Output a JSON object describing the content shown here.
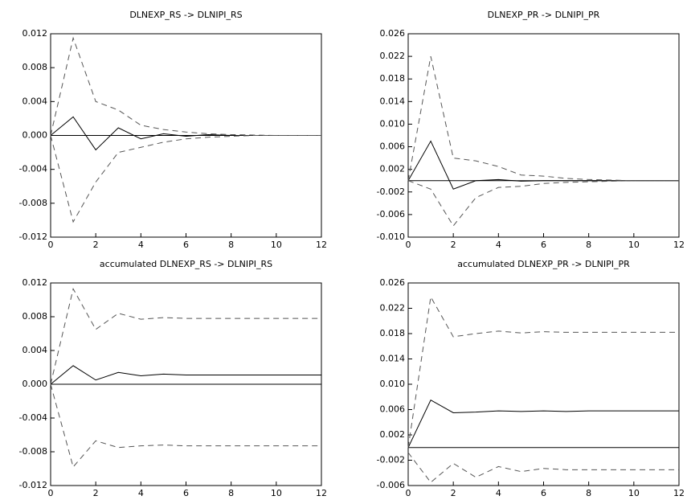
{
  "chart_data": [
    {
      "type": "line",
      "title": "DLNEXP_RS -> DLNIPI_RS",
      "x": [
        0,
        1,
        2,
        3,
        4,
        5,
        6,
        7,
        8,
        9,
        10,
        11,
        12
      ],
      "xlim": [
        0,
        12
      ],
      "xticks": [
        0,
        2,
        4,
        6,
        8,
        10,
        12
      ],
      "ylim": [
        -0.012,
        0.012
      ],
      "yticks": [
        -0.012,
        -0.008,
        -0.004,
        {
          "value": 0,
          "label": "0.000"
        },
        0.004,
        0.008,
        0.012
      ],
      "reference_line": 0,
      "series": [
        {
          "color": "#000000",
          "style": "solid",
          "values": [
            0,
            0.0022,
            -0.0017,
            0.0009,
            -0.0004,
            0.0002,
            -0.0001,
            0.0001,
            0,
            0,
            0,
            0,
            0
          ]
        },
        {
          "color": "#555555",
          "style": "dashed",
          "values": [
            0,
            0.0115,
            0.004,
            0.003,
            0.0012,
            0.0007,
            0.0004,
            0.0002,
            0.0001,
            5e-05,
            0,
            0,
            0
          ]
        },
        {
          "color": "#555555",
          "style": "dashed",
          "values": [
            0,
            -0.0102,
            -0.0055,
            -0.002,
            -0.0014,
            -0.0008,
            -0.0004,
            -0.0002,
            -0.0001,
            0,
            0,
            0,
            0
          ]
        }
      ]
    },
    {
      "type": "line",
      "title": "DLNEXP_PR -> DLNIPI_PR",
      "x": [
        0,
        1,
        2,
        3,
        4,
        5,
        6,
        7,
        8,
        9,
        10,
        11,
        12
      ],
      "xlim": [
        0,
        12
      ],
      "xticks": [
        0,
        2,
        4,
        6,
        8,
        10,
        12
      ],
      "ylim": [
        -0.01,
        0.026
      ],
      "yticks": [
        {
          "value": -0.01,
          "label": "-0.010"
        },
        -0.006,
        -0.002,
        0.002,
        0.006,
        {
          "value": 0.01,
          "label": "0.010"
        },
        0.014,
        0.018,
        0.022,
        0.026
      ],
      "reference_line": 0,
      "series": [
        {
          "color": "#000000",
          "style": "solid",
          "values": [
            0,
            0.007,
            -0.0015,
            0,
            0.0002,
            -0.0001,
            0,
            0,
            0,
            0,
            0,
            0,
            0
          ]
        },
        {
          "color": "#555555",
          "style": "dashed",
          "values": [
            0,
            0.022,
            0.004,
            0.0035,
            0.0025,
            0.001,
            0.0008,
            0.0004,
            0.0002,
            0.0001,
            0,
            0,
            0
          ]
        },
        {
          "color": "#555555",
          "style": "dashed",
          "values": [
            0,
            -0.0015,
            -0.008,
            -0.003,
            -0.0012,
            -0.001,
            -0.0005,
            -0.0003,
            -0.0002,
            -0.0001,
            0,
            0,
            0
          ]
        }
      ]
    },
    {
      "type": "line",
      "title": "accumulated DLNEXP_RS -> DLNIPI_RS",
      "x": [
        0,
        1,
        2,
        3,
        4,
        5,
        6,
        7,
        8,
        9,
        10,
        11,
        12
      ],
      "xlim": [
        0,
        12
      ],
      "xticks": [
        0,
        2,
        4,
        6,
        8,
        10,
        12
      ],
      "ylim": [
        -0.012,
        0.012
      ],
      "yticks": [
        -0.012,
        -0.008,
        -0.004,
        {
          "value": 0,
          "label": "0.000"
        },
        0.004,
        0.008,
        0.012
      ],
      "reference_line": 0,
      "series": [
        {
          "color": "#000000",
          "style": "solid",
          "values": [
            0,
            0.0022,
            0.0005,
            0.0014,
            0.001,
            0.0012,
            0.0011,
            0.0011,
            0.0011,
            0.0011,
            0.0011,
            0.0011,
            0.0011
          ]
        },
        {
          "color": "#555555",
          "style": "dashed",
          "values": [
            0,
            0.0113,
            0.0065,
            0.0084,
            0.0077,
            0.0079,
            0.0078,
            0.0078,
            0.0078,
            0.0078,
            0.0078,
            0.0078,
            0.0078
          ]
        },
        {
          "color": "#555555",
          "style": "dashed",
          "values": [
            0,
            -0.0098,
            -0.0067,
            -0.0075,
            -0.0073,
            -0.0072,
            -0.0073,
            -0.0073,
            -0.0073,
            -0.0073,
            -0.0073,
            -0.0073,
            -0.0073
          ]
        }
      ]
    },
    {
      "type": "line",
      "title": "accumulated DLNEXP_PR -> DLNIPI_PR",
      "x": [
        0,
        1,
        2,
        3,
        4,
        5,
        6,
        7,
        8,
        9,
        10,
        11,
        12
      ],
      "xlim": [
        0,
        12
      ],
      "xticks": [
        0,
        2,
        4,
        6,
        8,
        10,
        12
      ],
      "ylim": [
        -0.006,
        0.026
      ],
      "yticks": [
        -0.006,
        -0.002,
        0.002,
        0.006,
        {
          "value": 0.01,
          "label": "0.010"
        },
        0.014,
        0.018,
        0.022,
        0.026
      ],
      "reference_line": 0,
      "series": [
        {
          "color": "#000000",
          "style": "solid",
          "values": [
            0,
            0.0075,
            0.0055,
            0.0056,
            0.0058,
            0.0057,
            0.0058,
            0.0057,
            0.0058,
            0.0058,
            0.0058,
            0.0058,
            0.0058
          ]
        },
        {
          "color": "#555555",
          "style": "dashed",
          "values": [
            0,
            0.0238,
            0.0175,
            0.018,
            0.0184,
            0.0181,
            0.0183,
            0.0182,
            0.0182,
            0.0182,
            0.0182,
            0.0182,
            0.0182
          ]
        },
        {
          "color": "#555555",
          "style": "dashed",
          "values": [
            -0.0008,
            -0.0055,
            -0.0025,
            -0.0047,
            -0.003,
            -0.0038,
            -0.0033,
            -0.0035,
            -0.0035,
            -0.0035,
            -0.0035,
            -0.0035,
            -0.0035
          ]
        }
      ]
    }
  ]
}
